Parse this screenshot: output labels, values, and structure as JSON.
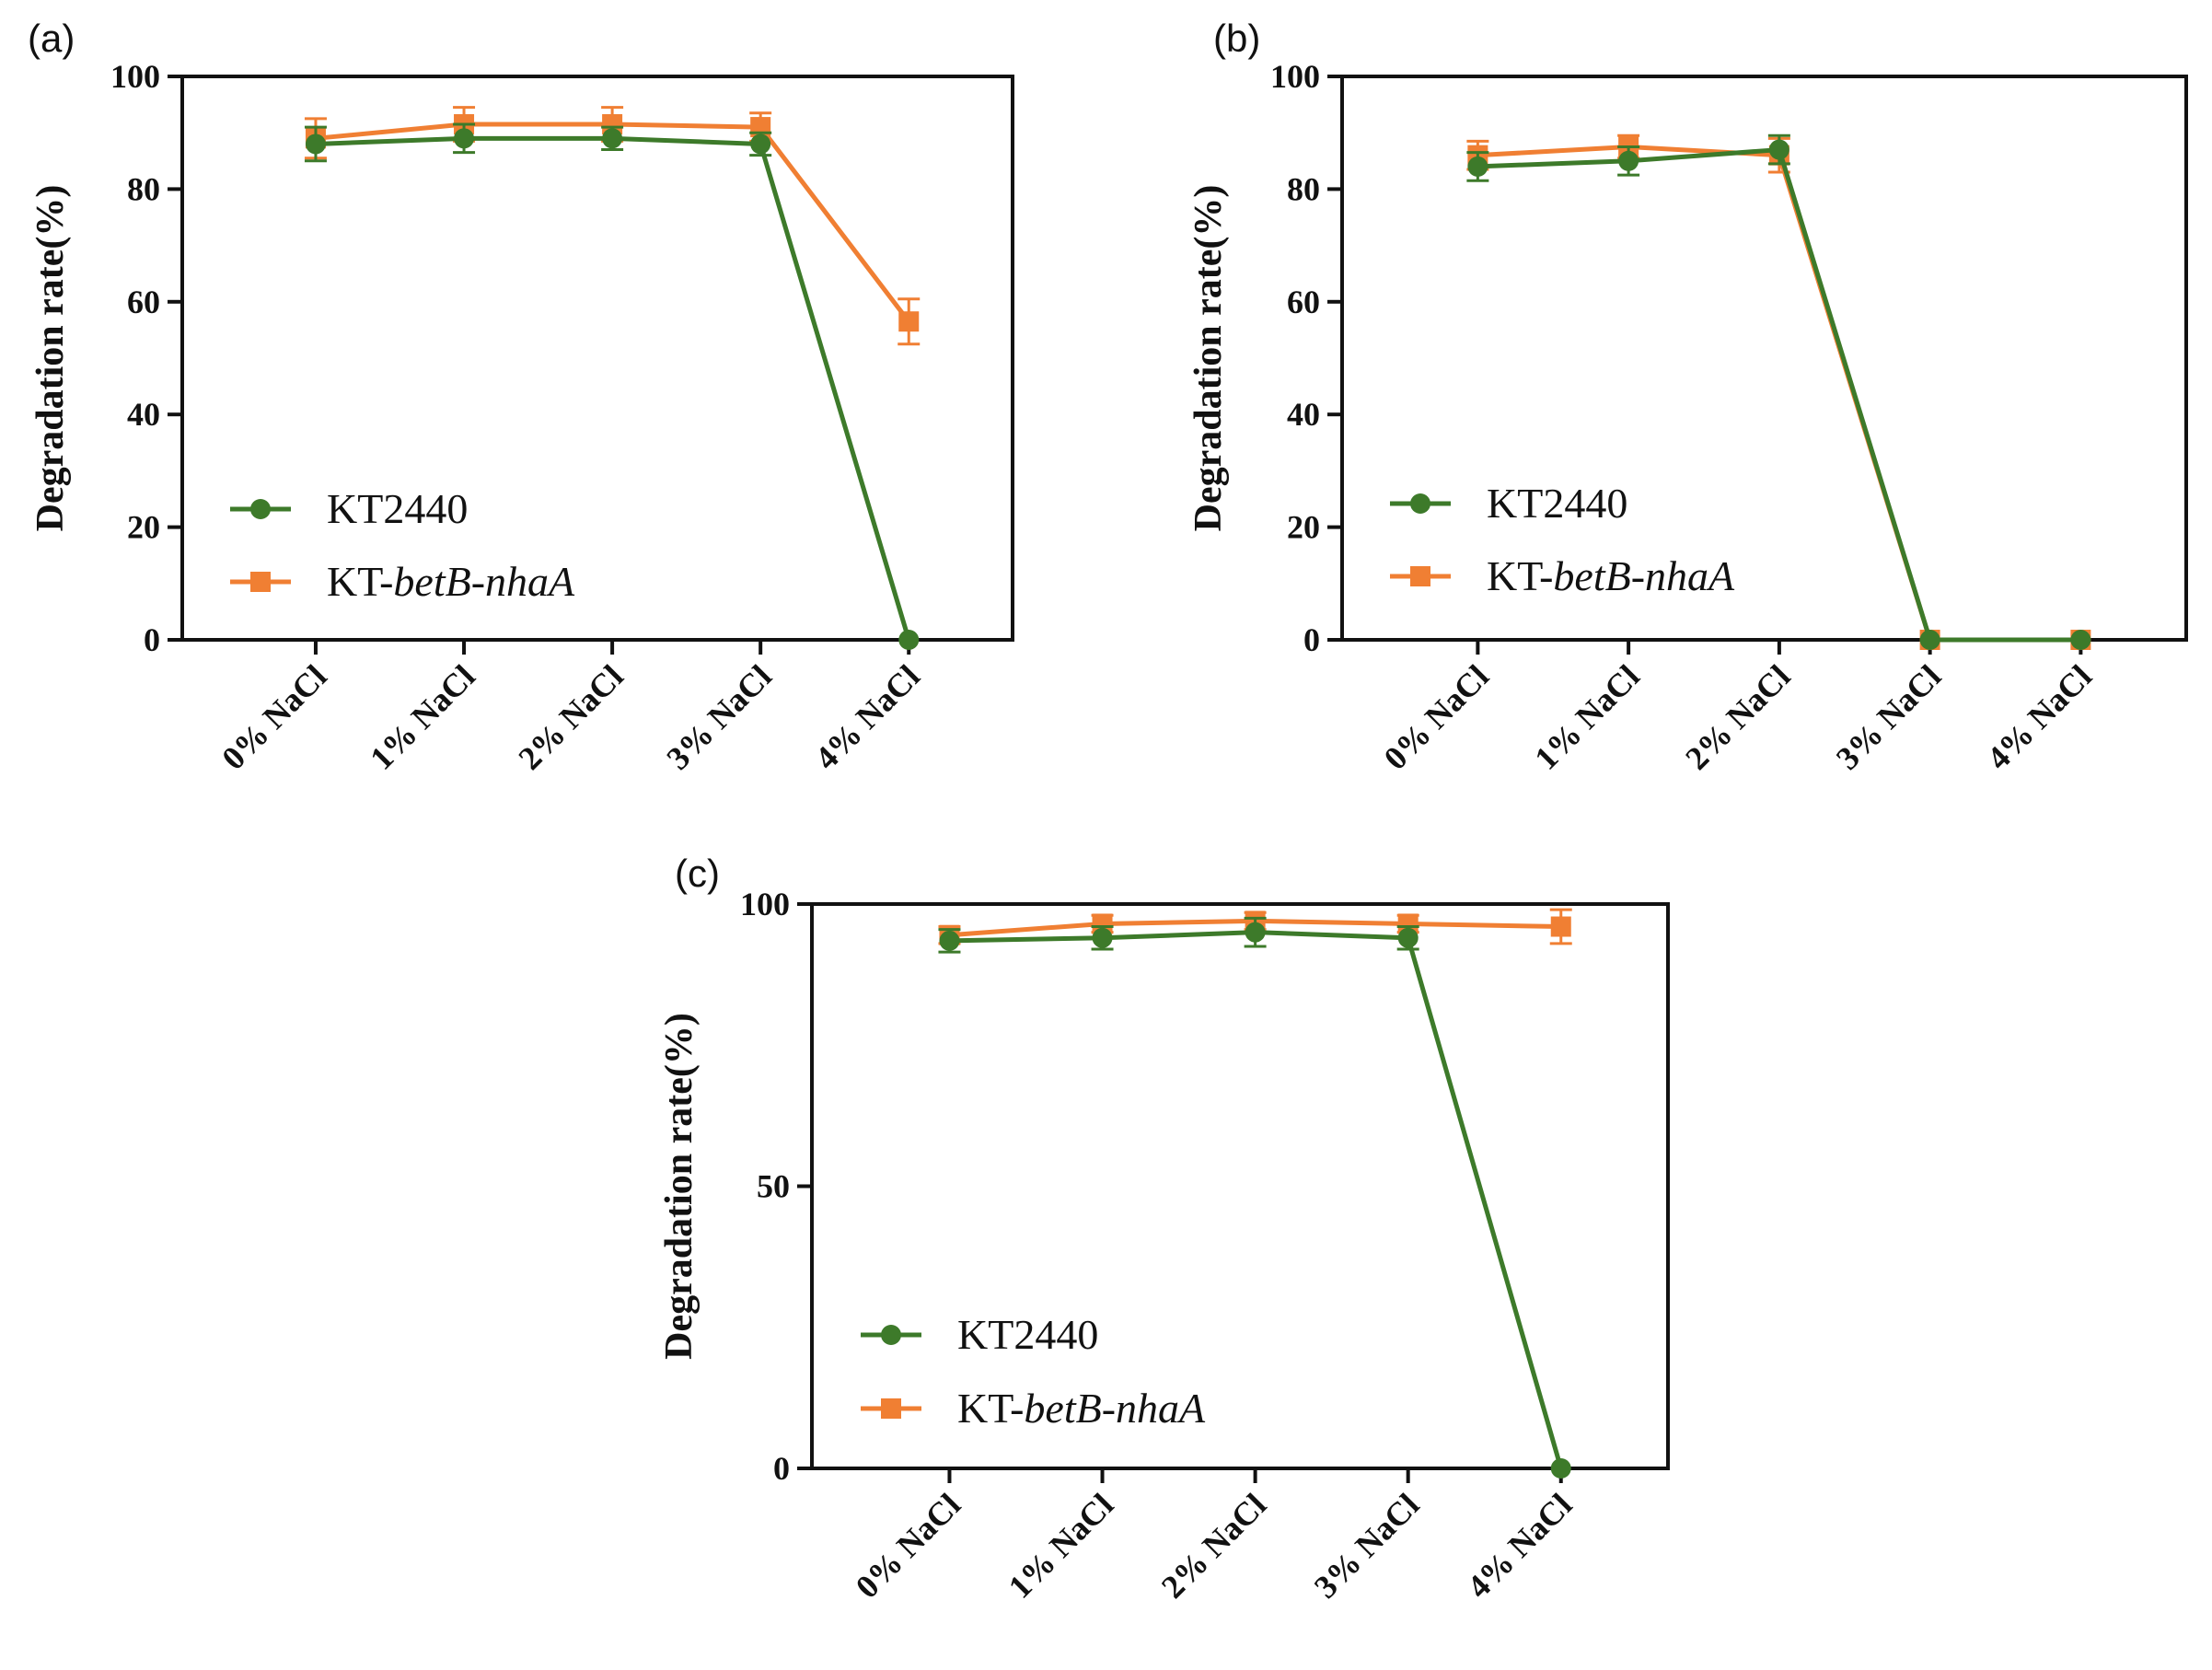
{
  "colors": {
    "KT2440": "#3d7a2a",
    "KT-betB-nhaA": "#f07f33",
    "axis": "#111111"
  },
  "chart_data": [
    {
      "panel_label": "(a)",
      "type": "line",
      "ylabel": "Degradation rate(%)",
      "ylim": [
        0,
        100
      ],
      "yticks": [
        "0",
        "20",
        "40",
        "60",
        "80",
        "100"
      ],
      "categories": [
        "0% NaCl",
        "1% NaCl",
        "2% NaCl",
        "3% NaCl",
        "4% NaCl"
      ],
      "legend_position": "lower-left",
      "grid": false,
      "series": [
        {
          "key": "KT2440",
          "name_plain": "KT2440",
          "name_italic": "",
          "marker": "circle",
          "values": [
            88,
            89,
            89,
            88,
            0
          ],
          "errors": [
            3,
            2.5,
            2,
            2,
            0
          ]
        },
        {
          "key": "KT-betB-nhaA",
          "name_plain": "KT-",
          "name_italic": "betB-nhaA",
          "marker": "square",
          "values": [
            89,
            91.5,
            91.5,
            91,
            56.5
          ],
          "errors": [
            3.5,
            3,
            3,
            2.5,
            4
          ]
        }
      ]
    },
    {
      "panel_label": "(b)",
      "type": "line",
      "ylabel": "Degradation rate(%)",
      "ylim": [
        0,
        100
      ],
      "yticks": [
        "0",
        "20",
        "40",
        "60",
        "80",
        "100"
      ],
      "categories": [
        "0% NaCl",
        "1% NaCl",
        "2% NaCl",
        "3% NaCl",
        "4% NaCl"
      ],
      "legend_position": "lower-left",
      "grid": false,
      "series": [
        {
          "key": "KT2440",
          "name_plain": "KT2440",
          "name_italic": "",
          "marker": "circle",
          "values": [
            84,
            85,
            87,
            0,
            0
          ],
          "errors": [
            2.5,
            2.5,
            2.5,
            0,
            0
          ]
        },
        {
          "key": "KT-betB-nhaA",
          "name_plain": "KT-",
          "name_italic": "betB-nhaA",
          "marker": "square",
          "values": [
            86,
            87.5,
            86,
            0,
            0
          ],
          "errors": [
            2.5,
            2,
            3,
            0,
            0
          ]
        }
      ]
    },
    {
      "panel_label": "(c)",
      "type": "line",
      "ylabel": "Degradation rate(%)",
      "ylim": [
        0,
        100
      ],
      "yticks": [
        "0",
        "50",
        "100"
      ],
      "categories": [
        "0% NaCl",
        "1% NaCl",
        "2% NaCl",
        "3% NaCl",
        "4% NaCl"
      ],
      "legend_position": "lower-left",
      "grid": false,
      "series": [
        {
          "key": "KT2440",
          "name_plain": "KT2440",
          "name_italic": "",
          "marker": "circle",
          "values": [
            93.5,
            94,
            95,
            94,
            0
          ],
          "errors": [
            2,
            2,
            2.5,
            2,
            0
          ]
        },
        {
          "key": "KT-betB-nhaA",
          "name_plain": "KT-",
          "name_italic": "betB-nhaA",
          "marker": "square",
          "values": [
            94.5,
            96.5,
            97,
            96.5,
            96
          ],
          "errors": [
            1.5,
            1.5,
            1.5,
            1.5,
            3
          ]
        }
      ]
    }
  ]
}
